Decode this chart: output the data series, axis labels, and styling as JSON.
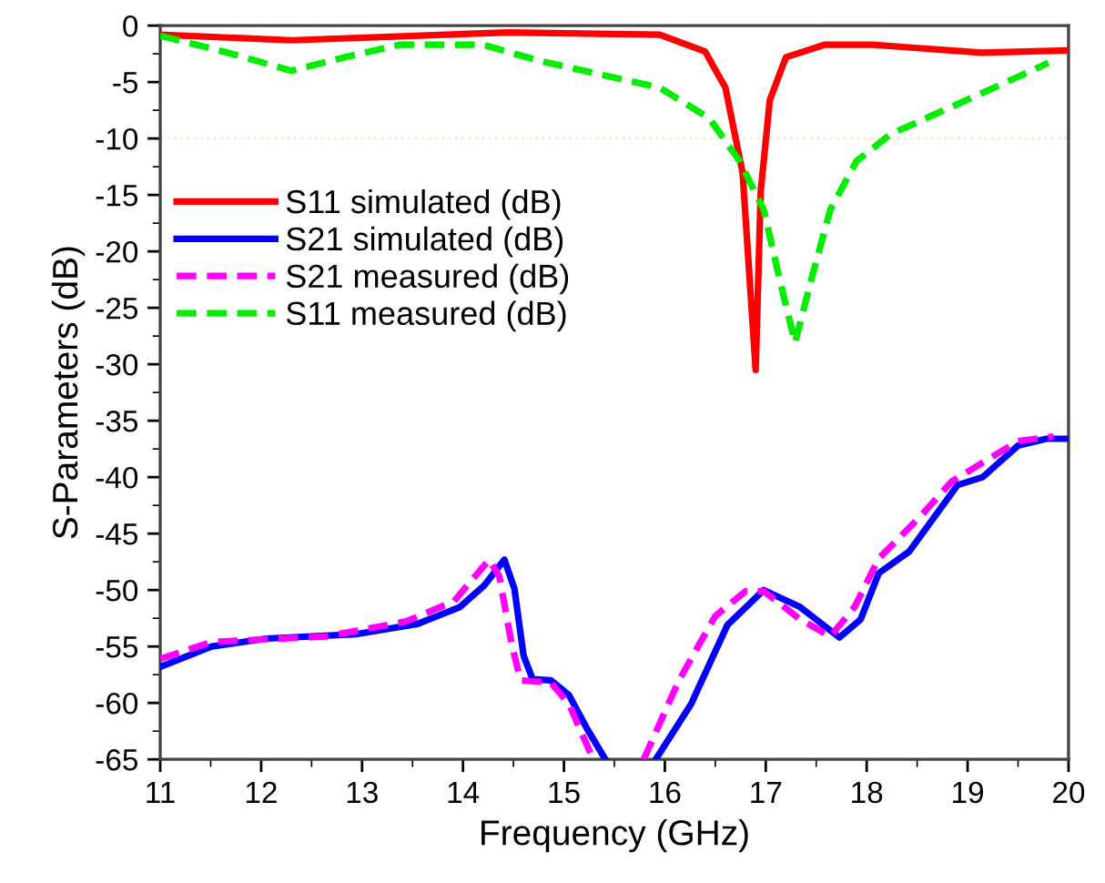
{
  "chart_data": {
    "type": "line",
    "xlabel": "Frequency (GHz)",
    "ylabel": "S-Parameters (dB)",
    "xlim": [
      11,
      20
    ],
    "ylim": [
      -65,
      0
    ],
    "xticks": [
      11,
      12,
      13,
      14,
      15,
      16,
      17,
      18,
      19,
      20
    ],
    "yticks": [
      0,
      -5,
      -10,
      -15,
      -20,
      -25,
      -30,
      -35,
      -40,
      -45,
      -50,
      -55,
      -60,
      -65
    ],
    "grid": false,
    "legend": "left",
    "ref_lines": [
      {
        "axis": "y",
        "value": -10,
        "color": "#fde3c8",
        "line_style": "dotted"
      }
    ],
    "series": [
      {
        "name": "S11 simulated (dB)",
        "color": "#ff0000",
        "line_style": "solid",
        "x": [
          11,
          12.3,
          14.45,
          15.95,
          16.4,
          16.6,
          16.77,
          16.9,
          16.95,
          17.04,
          17.2,
          17.58,
          18.06,
          19.14,
          20
        ],
        "values": [
          -0.8,
          -1.3,
          -0.6,
          -0.8,
          -2.3,
          -5.5,
          -13,
          -30.5,
          -14.7,
          -6.6,
          -2.8,
          -1.7,
          -1.7,
          -2.4,
          -2.2
        ]
      },
      {
        "name": "S21 simulated (dB)",
        "color": "#0000ff",
        "line_style": "solid",
        "x": [
          11,
          11.51,
          12.05,
          12.95,
          13.55,
          13.97,
          14.21,
          14.41,
          14.51,
          14.6,
          14.69,
          14.87,
          15.05,
          15.23,
          15.41,
          15.6,
          15.91,
          16.26,
          16.62,
          16.98,
          17.34,
          17.73,
          17.94,
          18.12,
          18.42,
          18.9,
          19.15,
          19.5,
          19.78,
          20
        ],
        "values": [
          -56.8,
          -55,
          -54.3,
          -53.9,
          -53,
          -51.5,
          -49.6,
          -47.3,
          -49.9,
          -55.8,
          -57.9,
          -58,
          -59.3,
          -62.3,
          -65,
          null,
          -65,
          -60.1,
          -53.1,
          -50,
          -51.5,
          -54.2,
          -52.6,
          -48.5,
          -46.6,
          -40.7,
          -40,
          -37.2,
          -36.6,
          -36.6
        ]
      },
      {
        "name": "S21 measured (dB)",
        "color": "#ff00ff",
        "line_style": "dashed",
        "x": [
          11,
          11.51,
          12.65,
          13.43,
          13.91,
          14.26,
          14.36,
          14.48,
          14.57,
          14.87,
          15.05,
          15.29,
          15.55,
          15.79,
          16.14,
          16.5,
          16.8,
          16.98,
          17.34,
          17.64,
          17.88,
          18.12,
          18.54,
          18.84,
          19.5,
          19.85
        ],
        "values": [
          -56.1,
          -54.6,
          -54.1,
          -52.8,
          -51,
          -47.3,
          -48.8,
          -54.7,
          -58,
          -58.2,
          -60.1,
          -65,
          null,
          -65,
          -58,
          -52.3,
          -50.1,
          -50.1,
          -52.6,
          -54.1,
          -51.5,
          -47.2,
          -43.4,
          -40.4,
          -36.8,
          -36.4
        ]
      },
      {
        "name": "S11 measured (dB)",
        "color": "#00ee00",
        "line_style": "dashed",
        "x": [
          11,
          11.63,
          12.3,
          12.83,
          13.37,
          14.2,
          14.75,
          15.4,
          15.95,
          16.44,
          16.74,
          16.98,
          17.13,
          17.29,
          17.46,
          17.64,
          17.9,
          18.24,
          18.84,
          19.68,
          19.8
        ],
        "values": [
          -0.9,
          -2.3,
          -4,
          -2.8,
          -1.7,
          -1.7,
          -3.1,
          -4.4,
          -5.5,
          -8.2,
          -12,
          -16.3,
          -22.2,
          -28.1,
          -22.2,
          -16.3,
          -12,
          -9.6,
          -7.2,
          -3.8,
          -3.3
        ]
      }
    ]
  }
}
